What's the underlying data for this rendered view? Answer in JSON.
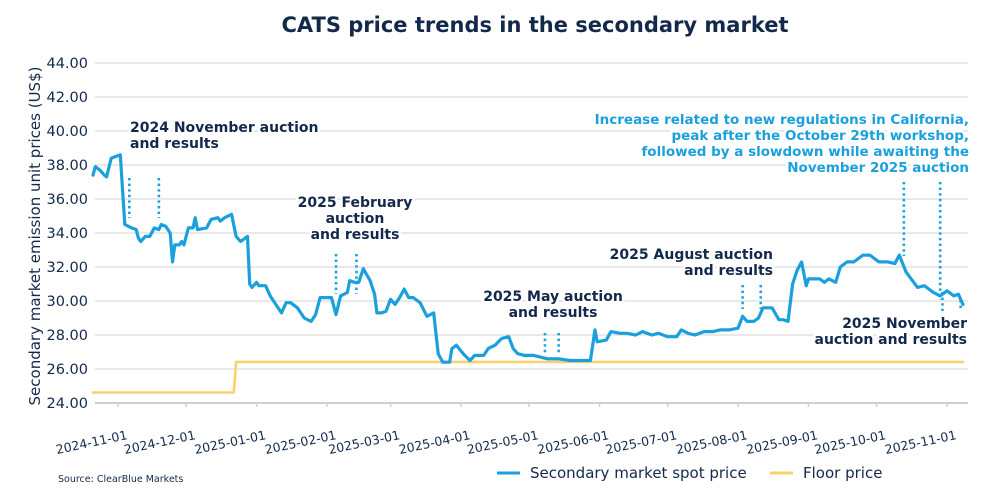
{
  "chart_data": {
    "type": "line",
    "title": "CATS price trends in the secondary market",
    "xlabel": "",
    "ylabel": "Secondary market emission unit prices (US$)",
    "ylim": [
      24,
      44
    ],
    "xlim": [
      "2024-10-21",
      "2025-11-10"
    ],
    "grid": true,
    "yticks": [
      "24.00",
      "26.00",
      "28.00",
      "30.00",
      "32.00",
      "34.00",
      "36.00",
      "38.00",
      "40.00",
      "42.00",
      "44.00"
    ],
    "ytick_values": [
      24,
      26,
      28,
      30,
      32,
      34,
      36,
      38,
      40,
      42,
      44
    ],
    "xticks": [
      "2024-11-01",
      "2024-12-01",
      "2025-01-01",
      "2025-02-01",
      "2025-03-01",
      "2025-04-01",
      "2025-05-01",
      "2025-06-01",
      "2025-07-01",
      "2025-08-01",
      "2025-09-01",
      "2025-10-01",
      "2025-11-01"
    ],
    "legend_position": "bottom-right",
    "source": "Source: ClearBlue Markets",
    "series": [
      {
        "name": "Secondary market spot price",
        "color": "#1aa0dc",
        "points": [
          [
            "2024-10-21",
            37.4
          ],
          [
            "2024-10-22",
            37.9
          ],
          [
            "2024-10-24",
            37.7
          ],
          [
            "2024-10-26",
            37.4
          ],
          [
            "2024-10-27",
            37.3
          ],
          [
            "2024-10-29",
            38.4
          ],
          [
            "2024-10-31",
            38.5
          ],
          [
            "2024-11-02",
            38.6
          ],
          [
            "2024-11-04",
            34.5
          ],
          [
            "2024-11-07",
            34.3
          ],
          [
            "2024-11-09",
            34.2
          ],
          [
            "2024-11-10",
            33.7
          ],
          [
            "2024-11-11",
            33.5
          ],
          [
            "2024-11-13",
            33.8
          ],
          [
            "2024-11-15",
            33.8
          ],
          [
            "2024-11-17",
            34.3
          ],
          [
            "2024-11-19",
            34.2
          ],
          [
            "2024-11-20",
            34.5
          ],
          [
            "2024-11-22",
            34.4
          ],
          [
            "2024-11-24",
            34.0
          ],
          [
            "2024-11-25",
            32.3
          ],
          [
            "2024-11-26",
            33.3
          ],
          [
            "2024-11-28",
            33.3
          ],
          [
            "2024-11-29",
            33.5
          ],
          [
            "2024-11-30",
            33.3
          ],
          [
            "2024-12-02",
            34.3
          ],
          [
            "2024-12-04",
            34.3
          ],
          [
            "2024-12-05",
            34.9
          ],
          [
            "2024-12-06",
            34.2
          ],
          [
            "2024-12-10",
            34.3
          ],
          [
            "2024-12-12",
            34.8
          ],
          [
            "2024-12-15",
            34.9
          ],
          [
            "2024-12-16",
            34.7
          ],
          [
            "2024-12-18",
            34.9
          ],
          [
            "2024-12-21",
            35.1
          ],
          [
            "2024-12-23",
            33.8
          ],
          [
            "2024-12-25",
            33.5
          ],
          [
            "2024-12-28",
            33.8
          ],
          [
            "2024-12-29",
            31.0
          ],
          [
            "2024-12-30",
            30.8
          ],
          [
            "2025-01-01",
            31.1
          ],
          [
            "2025-01-02",
            30.9
          ],
          [
            "2025-01-05",
            30.9
          ],
          [
            "2025-01-07",
            30.3
          ],
          [
            "2025-01-09",
            29.9
          ],
          [
            "2025-01-12",
            29.3
          ],
          [
            "2025-01-14",
            29.9
          ],
          [
            "2025-01-16",
            29.9
          ],
          [
            "2025-01-19",
            29.6
          ],
          [
            "2025-01-22",
            29.0
          ],
          [
            "2025-01-25",
            28.8
          ],
          [
            "2025-01-27",
            29.2
          ],
          [
            "2025-01-29",
            30.2
          ],
          [
            "2025-02-01",
            30.2
          ],
          [
            "2025-02-03",
            30.2
          ],
          [
            "2025-02-05",
            29.2
          ],
          [
            "2025-02-07",
            30.3
          ],
          [
            "2025-02-10",
            30.5
          ],
          [
            "2025-02-11",
            31.2
          ],
          [
            "2025-02-13",
            31.1
          ],
          [
            "2025-02-15",
            31.1
          ],
          [
            "2025-02-17",
            31.9
          ],
          [
            "2025-02-20",
            31.2
          ],
          [
            "2025-02-22",
            30.4
          ],
          [
            "2025-02-23",
            29.3
          ],
          [
            "2025-02-25",
            29.3
          ],
          [
            "2025-02-27",
            29.4
          ],
          [
            "2025-03-01",
            30.1
          ],
          [
            "2025-03-03",
            29.8
          ],
          [
            "2025-03-05",
            30.2
          ],
          [
            "2025-03-07",
            30.7
          ],
          [
            "2025-03-09",
            30.2
          ],
          [
            "2025-03-11",
            30.2
          ],
          [
            "2025-03-14",
            29.9
          ],
          [
            "2025-03-17",
            29.1
          ],
          [
            "2025-03-20",
            29.3
          ],
          [
            "2025-03-22",
            26.9
          ],
          [
            "2025-03-24",
            26.4
          ],
          [
            "2025-03-27",
            26.4
          ],
          [
            "2025-03-28",
            27.2
          ],
          [
            "2025-03-30",
            27.4
          ],
          [
            "2025-04-02",
            26.9
          ],
          [
            "2025-04-05",
            26.5
          ],
          [
            "2025-04-07",
            26.8
          ],
          [
            "2025-04-11",
            26.8
          ],
          [
            "2025-04-13",
            27.2
          ],
          [
            "2025-04-16",
            27.4
          ],
          [
            "2025-04-19",
            27.8
          ],
          [
            "2025-04-22",
            27.9
          ],
          [
            "2025-04-24",
            27.2
          ],
          [
            "2025-04-26",
            26.9
          ],
          [
            "2025-04-29",
            26.8
          ],
          [
            "2025-05-03",
            26.8
          ],
          [
            "2025-05-06",
            26.7
          ],
          [
            "2025-05-09",
            26.6
          ],
          [
            "2025-05-14",
            26.6
          ],
          [
            "2025-05-19",
            26.5
          ],
          [
            "2025-05-22",
            26.5
          ],
          [
            "2025-05-28",
            26.5
          ],
          [
            "2025-05-30",
            28.3
          ],
          [
            "2025-05-31",
            27.6
          ],
          [
            "2025-06-04",
            27.7
          ],
          [
            "2025-06-06",
            28.2
          ],
          [
            "2025-06-10",
            28.1
          ],
          [
            "2025-06-13",
            28.1
          ],
          [
            "2025-06-17",
            28.0
          ],
          [
            "2025-06-20",
            28.2
          ],
          [
            "2025-06-24",
            28.0
          ],
          [
            "2025-06-27",
            28.1
          ],
          [
            "2025-07-01",
            27.9
          ],
          [
            "2025-07-05",
            27.9
          ],
          [
            "2025-07-07",
            28.3
          ],
          [
            "2025-07-10",
            28.1
          ],
          [
            "2025-07-13",
            28.0
          ],
          [
            "2025-07-17",
            28.2
          ],
          [
            "2025-07-21",
            28.2
          ],
          [
            "2025-07-24",
            28.3
          ],
          [
            "2025-07-28",
            28.3
          ],
          [
            "2025-08-01",
            28.4
          ],
          [
            "2025-08-03",
            29.1
          ],
          [
            "2025-08-05",
            28.8
          ],
          [
            "2025-08-08",
            28.8
          ],
          [
            "2025-08-10",
            29.0
          ],
          [
            "2025-08-12",
            29.6
          ],
          [
            "2025-08-16",
            29.6
          ],
          [
            "2025-08-19",
            28.9
          ],
          [
            "2025-08-21",
            28.9
          ],
          [
            "2025-08-23",
            28.8
          ],
          [
            "2025-08-25",
            31.0
          ],
          [
            "2025-08-27",
            31.8
          ],
          [
            "2025-08-29",
            32.3
          ],
          [
            "2025-08-31",
            30.9
          ],
          [
            "2025-09-01",
            31.3
          ],
          [
            "2025-09-06",
            31.3
          ],
          [
            "2025-09-08",
            31.1
          ],
          [
            "2025-09-10",
            31.3
          ],
          [
            "2025-09-13",
            31.1
          ],
          [
            "2025-09-15",
            32.0
          ],
          [
            "2025-09-18",
            32.3
          ],
          [
            "2025-09-21",
            32.3
          ],
          [
            "2025-09-25",
            32.7
          ],
          [
            "2025-09-28",
            32.7
          ],
          [
            "2025-10-02",
            32.3
          ],
          [
            "2025-10-06",
            32.3
          ],
          [
            "2025-10-09",
            32.2
          ],
          [
            "2025-10-11",
            32.7
          ],
          [
            "2025-10-14",
            31.7
          ],
          [
            "2025-10-19",
            30.8
          ],
          [
            "2025-10-22",
            30.9
          ],
          [
            "2025-10-26",
            30.5
          ],
          [
            "2025-10-29",
            30.3
          ],
          [
            "2025-11-01",
            30.6
          ],
          [
            "2025-11-04",
            30.3
          ],
          [
            "2025-11-06",
            30.4
          ],
          [
            "2025-11-08",
            29.8
          ]
        ]
      },
      {
        "name": "Floor price",
        "color": "#fbd16d",
        "points": [
          [
            "2024-10-21",
            24.62
          ],
          [
            "2024-12-22",
            24.62
          ],
          [
            "2024-12-23",
            26.42
          ],
          [
            "2025-11-08",
            26.42
          ]
        ]
      }
    ],
    "annotations": [
      {
        "text": [
          "2024 November auction",
          "and results"
        ],
        "markers": [
          "2024-11-06",
          "2024-11-19"
        ],
        "style": "dark"
      },
      {
        "text": [
          "2025 February",
          "auction",
          "and results"
        ],
        "markers": [
          "2025-02-05",
          "2025-02-14"
        ],
        "style": "dark"
      },
      {
        "text": [
          "2025 May auction",
          "and results"
        ],
        "markers": [
          "2025-05-08",
          "2025-05-14"
        ],
        "style": "dark"
      },
      {
        "text": [
          "2025 August auction",
          "and results"
        ],
        "markers": [
          "2025-08-03",
          "2025-08-11"
        ],
        "style": "dark"
      },
      {
        "text": [
          "2025 November",
          "auction and results"
        ],
        "markers": [
          "2025-10-30",
          "2025-11-07"
        ],
        "style": "dark"
      },
      {
        "text": [
          "Increase related to new regulations in California,",
          "peak after the October 29th workshop,",
          "followed by a slowdown while awaiting the",
          "November 2025 auction"
        ],
        "markers": [
          "2025-10-13",
          "2025-10-29"
        ],
        "style": "blue"
      }
    ]
  }
}
